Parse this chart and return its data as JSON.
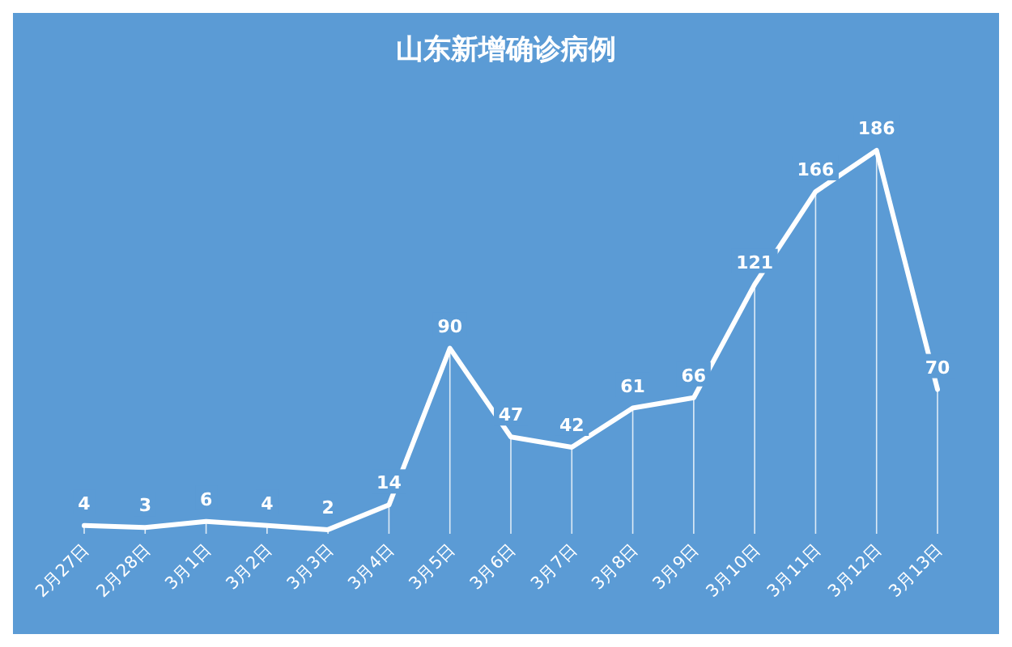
{
  "chart_data": {
    "type": "line",
    "title": "山东新增确诊病例",
    "categories": [
      "2月27日",
      "2月28日",
      "3月1日",
      "3月2日",
      "3月3日",
      "3月4日",
      "3月5日",
      "3月6日",
      "3月7日",
      "3月8日",
      "3月9日",
      "3月10日",
      "3月11日",
      "3月12日",
      "3月13日"
    ],
    "series": [
      {
        "color": "#ffffff",
        "values": [
          4,
          3,
          6,
          4,
          2,
          14,
          90,
          47,
          42,
          61,
          66,
          121,
          166,
          186,
          70
        ]
      }
    ],
    "data_labels": true,
    "grid": "x",
    "marker": "none",
    "line_style": "solid"
  }
}
